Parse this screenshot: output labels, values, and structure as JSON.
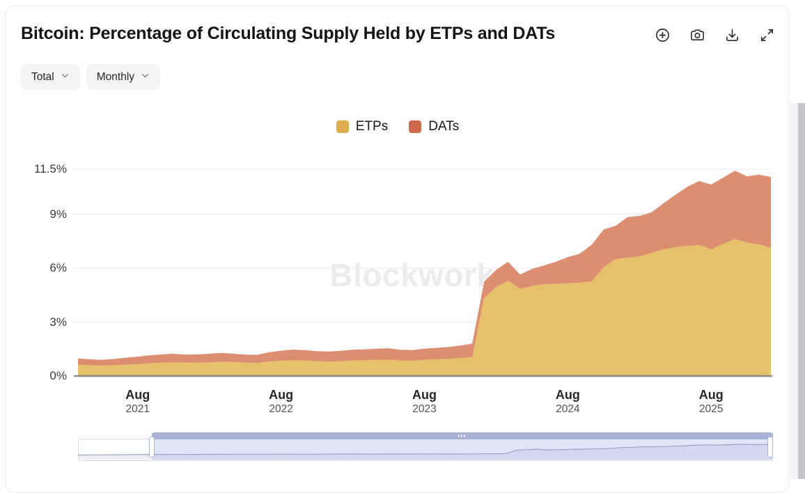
{
  "header": {
    "title": "Bitcoin: Percentage of Circulating Supply Held by ETPs and DATs",
    "toolbar": [
      {
        "name": "zoom-in",
        "icon": "plus-circle-icon"
      },
      {
        "name": "screenshot",
        "icon": "camera-icon"
      },
      {
        "name": "download",
        "icon": "download-icon"
      },
      {
        "name": "fullscreen",
        "icon": "expand-icon"
      }
    ]
  },
  "controls": {
    "metric_dropdown": {
      "value": "Total"
    },
    "interval_dropdown": {
      "value": "Monthly"
    }
  },
  "watermark": "Blockworks",
  "chart_data": {
    "type": "area",
    "stacked": true,
    "title": "Bitcoin: Percentage of Circulating Supply Held by ETPs and DATs",
    "xlabel": "",
    "ylabel": "",
    "ylim": [
      0,
      11.5
    ],
    "grid": true,
    "legend_position": "top-center",
    "x": [
      "2021-03",
      "2021-04",
      "2021-05",
      "2021-06",
      "2021-07",
      "2021-08",
      "2021-09",
      "2021-10",
      "2021-11",
      "2021-12",
      "2022-01",
      "2022-02",
      "2022-03",
      "2022-04",
      "2022-05",
      "2022-06",
      "2022-07",
      "2022-08",
      "2022-09",
      "2022-10",
      "2022-11",
      "2022-12",
      "2023-01",
      "2023-02",
      "2023-03",
      "2023-04",
      "2023-05",
      "2023-06",
      "2023-07",
      "2023-08",
      "2023-09",
      "2023-10",
      "2023-11",
      "2023-12",
      "2024-01",
      "2024-02",
      "2024-03",
      "2024-04",
      "2024-05",
      "2024-06",
      "2024-07",
      "2024-08",
      "2024-09",
      "2024-10",
      "2024-11",
      "2024-12",
      "2025-01",
      "2025-02",
      "2025-03",
      "2025-04",
      "2025-05",
      "2025-06",
      "2025-07",
      "2025-08",
      "2025-09",
      "2025-10",
      "2025-11",
      "2025-12",
      "2026-01"
    ],
    "series": [
      {
        "name": "ETPs",
        "legend_color": "#DBAD4F",
        "fill_color": "#E6C169",
        "values": [
          0.62,
          0.6,
          0.58,
          0.6,
          0.63,
          0.66,
          0.7,
          0.74,
          0.76,
          0.74,
          0.74,
          0.76,
          0.79,
          0.78,
          0.74,
          0.72,
          0.8,
          0.85,
          0.87,
          0.86,
          0.82,
          0.8,
          0.82,
          0.86,
          0.88,
          0.9,
          0.91,
          0.86,
          0.84,
          0.9,
          0.93,
          0.95,
          1.0,
          1.05,
          4.35,
          4.95,
          5.3,
          4.85,
          5.0,
          5.1,
          5.12,
          5.16,
          5.2,
          5.25,
          6.05,
          6.5,
          6.58,
          6.65,
          6.84,
          7.04,
          7.16,
          7.23,
          7.29,
          7.04,
          7.35,
          7.62,
          7.42,
          7.33,
          7.12
        ]
      },
      {
        "name": "DATs",
        "legend_color": "#CE6B4D",
        "fill_color": "#DC8F70",
        "values": [
          0.35,
          0.33,
          0.32,
          0.35,
          0.39,
          0.42,
          0.45,
          0.46,
          0.48,
          0.45,
          0.46,
          0.48,
          0.49,
          0.46,
          0.45,
          0.46,
          0.52,
          0.56,
          0.6,
          0.58,
          0.56,
          0.56,
          0.58,
          0.6,
          0.6,
          0.62,
          0.63,
          0.6,
          0.6,
          0.62,
          0.64,
          0.66,
          0.7,
          0.75,
          0.9,
          0.95,
          1.05,
          0.8,
          0.95,
          1.05,
          1.23,
          1.45,
          1.6,
          2.05,
          2.1,
          1.85,
          2.26,
          2.25,
          2.26,
          2.56,
          2.91,
          3.29,
          3.55,
          3.61,
          3.68,
          3.8,
          3.68,
          3.87,
          3.95
        ]
      }
    ],
    "yticks": [
      {
        "value": 0,
        "label": "0%"
      },
      {
        "value": 3,
        "label": "3%"
      },
      {
        "value": 6,
        "label": "6%"
      },
      {
        "value": 9,
        "label": "9%"
      },
      {
        "value": 11.5,
        "label": "11.5%"
      }
    ],
    "xticks": [
      {
        "index": 5,
        "line1": "Aug",
        "line2": "2021"
      },
      {
        "index": 17,
        "line1": "Aug",
        "line2": "2022"
      },
      {
        "index": 29,
        "line1": "Aug",
        "line2": "2023"
      },
      {
        "index": 41,
        "line1": "Aug",
        "line2": "2024"
      },
      {
        "index": 53,
        "line1": "Aug",
        "line2": "2025"
      }
    ]
  },
  "brush": {
    "lead_in_total": [
      0.42,
      0.45,
      0.5,
      0.6,
      0.72,
      0.85,
      0.92
    ]
  },
  "colors": {
    "grid": "#ededf0",
    "axis": "#8b8b90",
    "brush_line": "#98a1c2",
    "brush_selection": "#e2e6f9",
    "brush_topbar": "#a8b0d5"
  }
}
